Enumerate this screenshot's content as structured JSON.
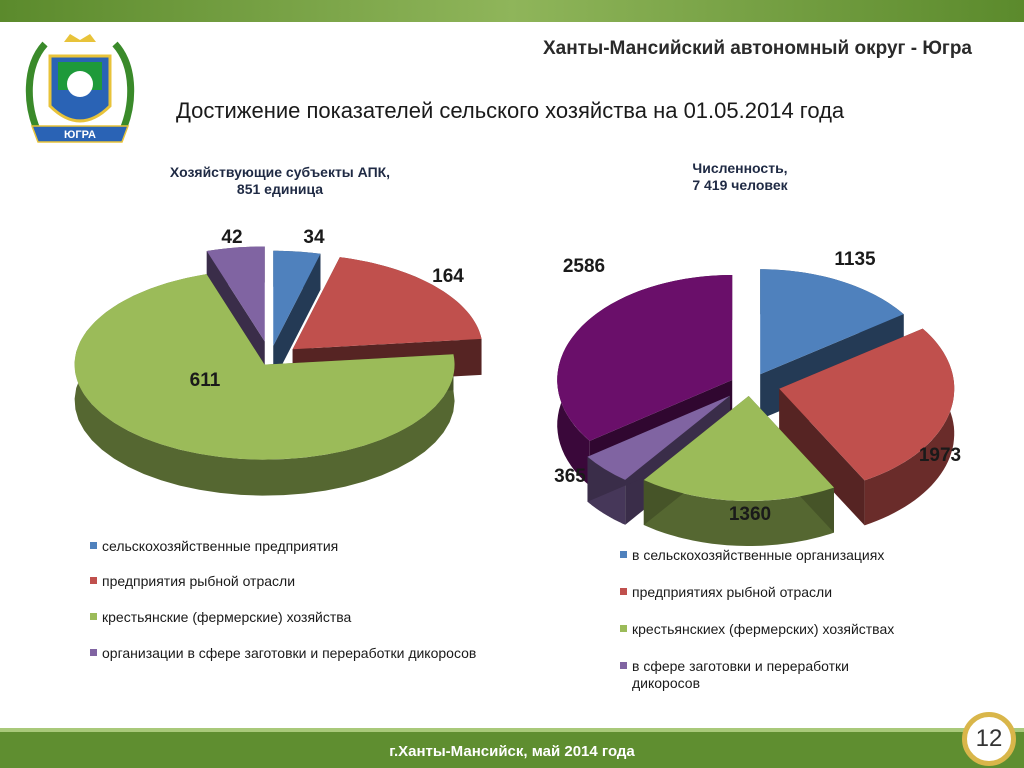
{
  "header": {
    "region": "Ханты-Мансийский автономный округ - Югра",
    "slide_title": "Достижение показателей  сельского хозяйства на 01.05.2014 года",
    "emblem_text": "ЮГРА"
  },
  "footer": {
    "text": "г.Ханты-Мансийск, май 2014 года",
    "page_number": "12"
  },
  "colors": {
    "frame_green": "#6f9a3e",
    "blue": "#4f81bd",
    "red": "#c0504d",
    "green": "#9bbb59",
    "purple": "#8064a2",
    "dark_purple": "#6a0f6a"
  },
  "chart_data": [
    {
      "type": "pie",
      "title": "Хозяйствующие субъекты АПК,",
      "subtitle": "851 единица",
      "categories": [
        "сельскохозяйственные предприятия",
        "предприятия рыбной отрасли",
        "крестьянские (фермерские) хозяйства",
        "организации в сфере заготовки и переработки дикоросов"
      ],
      "values": [
        34,
        164,
        611,
        42
      ],
      "data_labels": [
        "34",
        "164",
        "611",
        "42"
      ],
      "colors": [
        "#4f81bd",
        "#c0504d",
        "#9bbb59",
        "#8064a2"
      ],
      "legend": "bottom"
    },
    {
      "type": "pie",
      "title": "Численность,",
      "subtitle": "7 419 человек",
      "categories": [
        "в сельскохозяйственные организациях",
        "предприятиях рыбной отрасли",
        "крестьянскиех (фермерских) хозяйствах",
        "в сфере заготовки и переработки дикоросов",
        ""
      ],
      "values": [
        1135,
        1973,
        1360,
        365,
        2586
      ],
      "data_labels": [
        "1135",
        "1973",
        "1360",
        "365",
        "2586"
      ],
      "colors": [
        "#4f81bd",
        "#c0504d",
        "#9bbb59",
        "#8064a2",
        "#6a0f6a"
      ],
      "legend": "bottom"
    }
  ]
}
